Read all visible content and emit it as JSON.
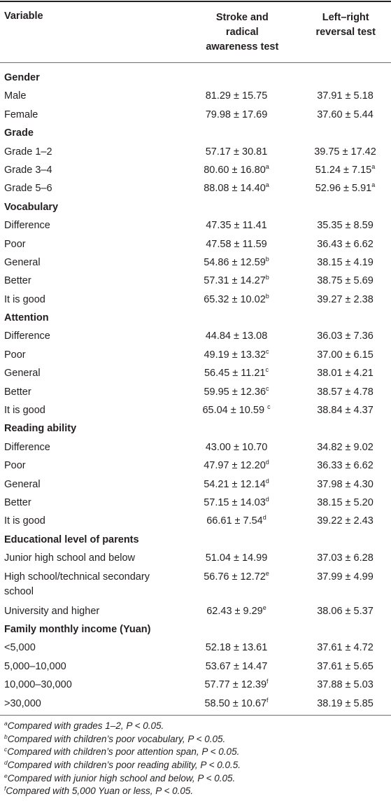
{
  "header": {
    "col0": "Variable",
    "col1": [
      "Stroke and",
      "radical",
      "awareness test"
    ],
    "col2": [
      "Left–right",
      "reversal test"
    ]
  },
  "rows": [
    {
      "type": "group",
      "label": "Gender"
    },
    {
      "label": "Male",
      "v1": "81.29 ± 15.75",
      "s1": "",
      "v2": "37.91 ± 5.18",
      "s2": ""
    },
    {
      "label": "Female",
      "v1": "79.98 ± 17.69",
      "s1": "",
      "v2": "37.60 ± 5.44",
      "s2": ""
    },
    {
      "type": "group",
      "label": "Grade"
    },
    {
      "label": "Grade 1–2",
      "v1": "57.17 ± 30.81",
      "s1": "",
      "v2": "39.75 ± 17.42",
      "s2": ""
    },
    {
      "label": "Grade 3–4",
      "v1": "80.60 ± 16.80",
      "s1": "a",
      "v2": "51.24 ± 7.15",
      "s2": "a"
    },
    {
      "label": "Grade 5–6",
      "v1": "88.08 ± 14.40",
      "s1": "a",
      "v2": "52.96 ± 5.91",
      "s2": "a"
    },
    {
      "type": "group",
      "label": "Vocabulary"
    },
    {
      "label": "Difference",
      "v1": "47.35 ± 11.41",
      "s1": "",
      "v2": "35.35 ± 8.59",
      "s2": ""
    },
    {
      "label": "Poor",
      "v1": "47.58 ± 11.59",
      "s1": "",
      "v2": "36.43 ± 6.62",
      "s2": ""
    },
    {
      "label": "General",
      "v1": "54.86 ± 12.59",
      "s1": "b",
      "v2": "38.15 ± 4.19",
      "s2": ""
    },
    {
      "label": "Better",
      "v1": "57.31 ± 14.27",
      "s1": "b",
      "v2": "38.75 ± 5.69",
      "s2": ""
    },
    {
      "label": "It is good",
      "v1": "65.32 ± 10.02",
      "s1": "b",
      "v2": "39.27 ± 2.38",
      "s2": ""
    },
    {
      "type": "group",
      "label": "Attention"
    },
    {
      "label": "Difference",
      "v1": "44.84 ± 13.08",
      "s1": "",
      "v2": "36.03 ± 7.36",
      "s2": ""
    },
    {
      "label": "Poor",
      "v1": "49.19 ± 13.32",
      "s1": "c",
      "v2": "37.00 ± 6.15",
      "s2": ""
    },
    {
      "label": "General",
      "v1": "56.45 ± 11.21",
      "s1": "c",
      "v2": "38.01 ± 4.21",
      "s2": ""
    },
    {
      "label": "Better",
      "v1": "59.95 ± 12.36",
      "s1": "c",
      "v2": "38.57 ± 4.78",
      "s2": ""
    },
    {
      "label": "It is good",
      "v1": "65.04 ± 10.59 ",
      "s1": "c",
      "v2": "38.84 ± 4.37",
      "s2": ""
    },
    {
      "type": "group",
      "label": "Reading ability"
    },
    {
      "label": "Difference",
      "v1": "43.00 ± 10.70",
      "s1": "",
      "v2": "34.82 ± 9.02",
      "s2": ""
    },
    {
      "label": "Poor",
      "v1": "47.97 ± 12.20",
      "s1": "d",
      "v2": "36.33 ± 6.62",
      "s2": ""
    },
    {
      "label": "General",
      "v1": "54.21 ± 12.14",
      "s1": "d",
      "v2": "37.98 ± 4.30",
      "s2": ""
    },
    {
      "label": "Better",
      "v1": "57.15 ± 14.03",
      "s1": "d",
      "v2": "38.15 ± 5.20",
      "s2": ""
    },
    {
      "label": "It is good",
      "v1": "66.61 ± 7.54",
      "s1": "d",
      "v2": "39.22 ± 2.43",
      "s2": ""
    },
    {
      "type": "group",
      "label": "Educational level of parents"
    },
    {
      "label": "Junior high school and below",
      "v1": "51.04 ± 14.99",
      "s1": "",
      "v2": "37.03 ± 6.28",
      "s2": ""
    },
    {
      "label": "High school/technical secondary school",
      "tall": true,
      "v1": "56.76 ± 12.72",
      "s1": "e",
      "v2": "37.99 ± 4.99",
      "s2": ""
    },
    {
      "label": "University and higher",
      "v1": "62.43 ± 9.29",
      "s1": "e",
      "v2": "38.06 ± 5.37",
      "s2": ""
    },
    {
      "type": "group",
      "label": "Family monthly income (Yuan)"
    },
    {
      "label": "<5,000",
      "v1": "52.18 ± 13.61",
      "s1": "",
      "v2": "37.61 ± 4.72",
      "s2": ""
    },
    {
      "label": "5,000–10,000",
      "v1": "53.67 ± 14.47",
      "s1": "",
      "v2": "37.61 ± 5.65",
      "s2": ""
    },
    {
      "label": "10,000–30,000",
      "v1": "57.77 ± 12.39",
      "s1": "f",
      "v2": "37.88 ± 5.03",
      "s2": ""
    },
    {
      "label": ">30,000",
      "v1": "58.50 ± 10.67",
      "s1": "f",
      "v2": "38.19 ± 5.85",
      "s2": ""
    }
  ],
  "footnotes": [
    {
      "mark": "a",
      "text": "Compared with grades 1–2, P < 0.05."
    },
    {
      "mark": "b",
      "text": "Compared with children’s poor vocabulary, P < 0.05."
    },
    {
      "mark": "c",
      "text": "Compared with children’s poor attention span, P < 0.05."
    },
    {
      "mark": "d",
      "text": "Compared with children’s poor reading ability, P < 0.0.5."
    },
    {
      "mark": "e",
      "text": "Compared with junior high school and below, P < 0.05."
    },
    {
      "mark": "f",
      "text": "Compared with 5,000 Yuan or less, P < 0.05."
    }
  ]
}
